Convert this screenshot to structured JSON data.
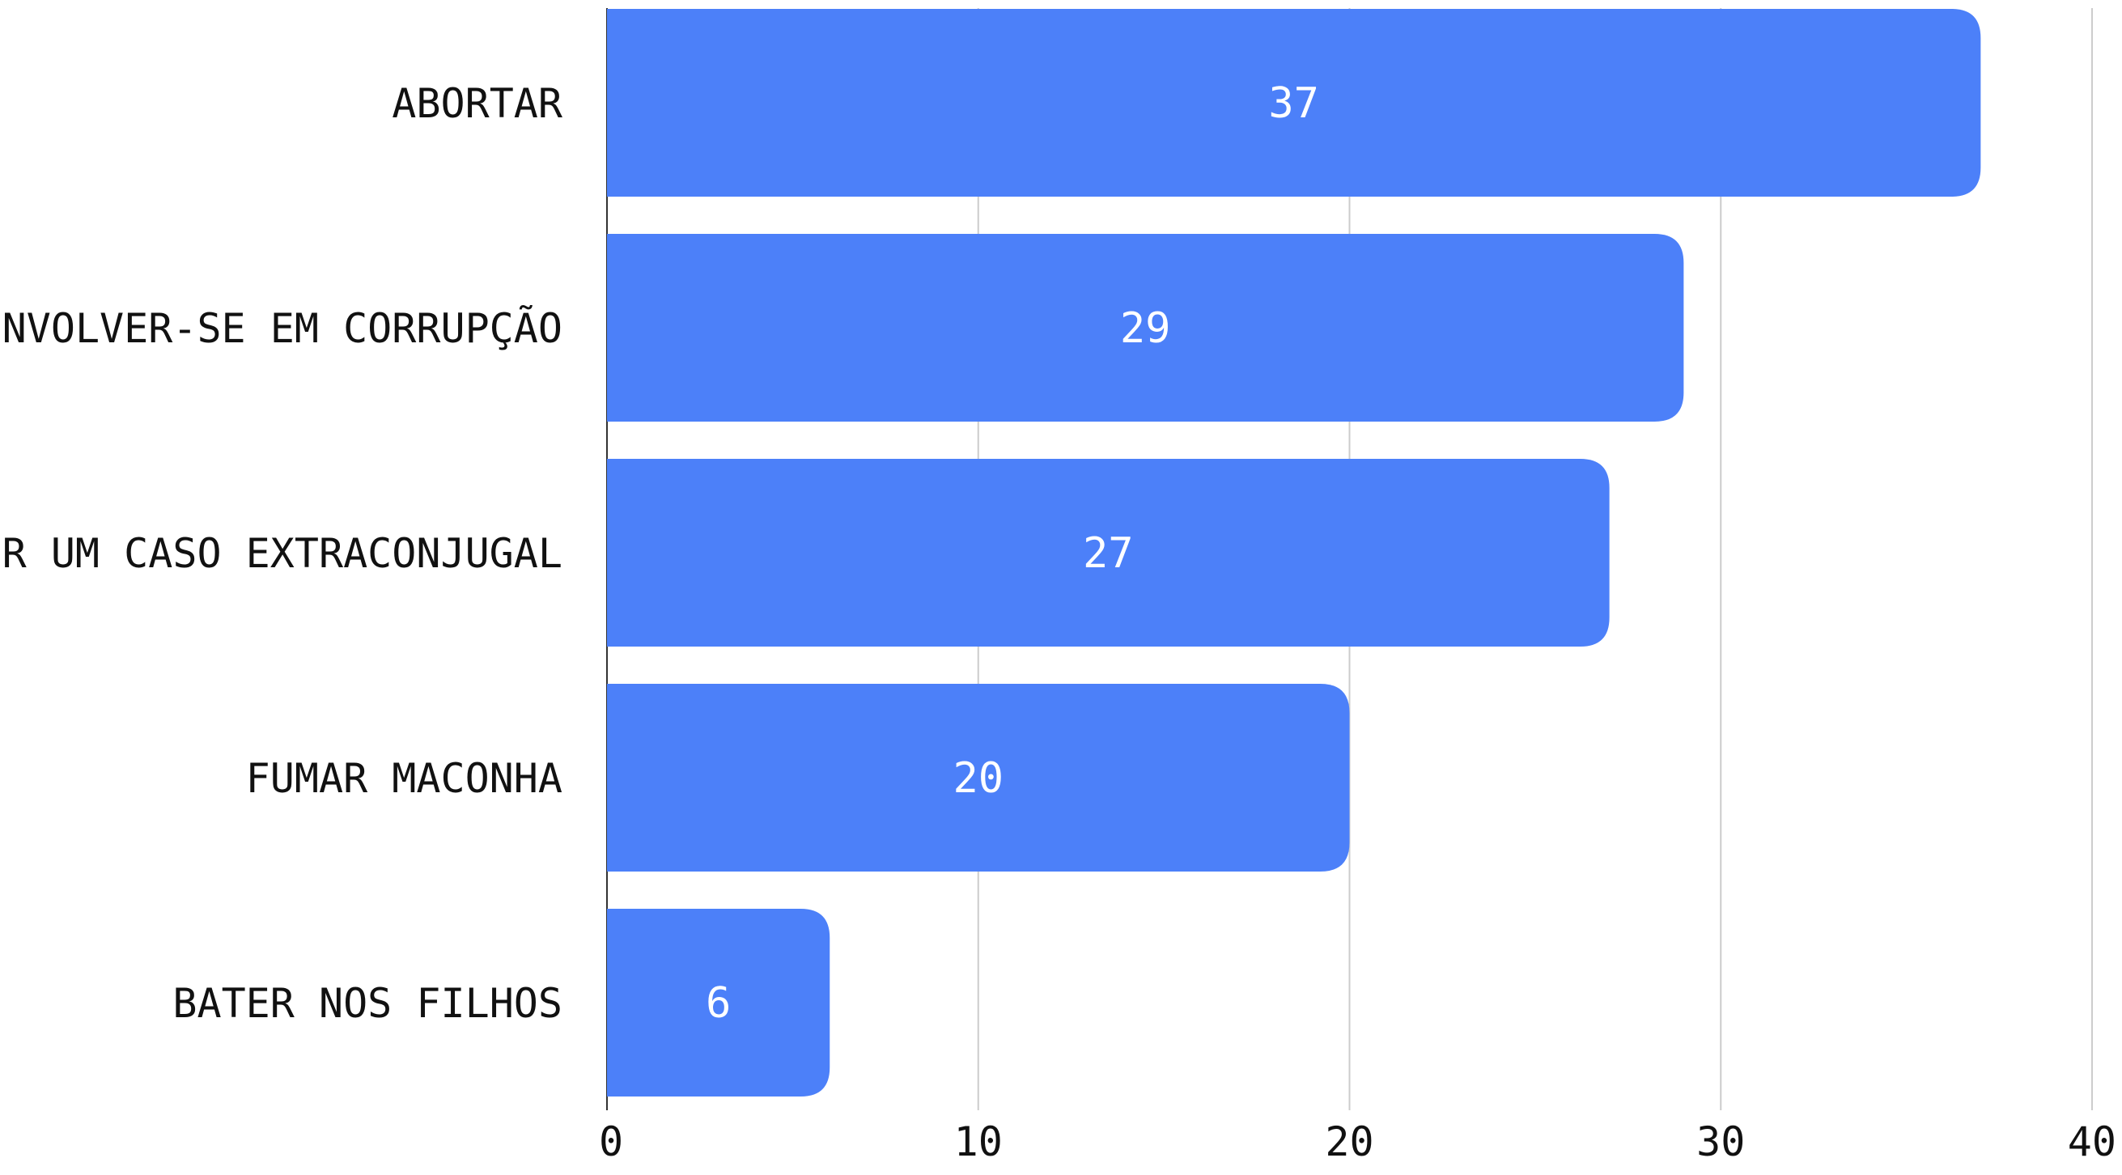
{
  "chart_data": {
    "type": "bar",
    "orientation": "horizontal",
    "categories": [
      "ABORTAR",
      "ENVOLVER-SE EM CORRUPÇÃO",
      "TER UM CASO EXTRACONJUGAL",
      "FUMAR MACONHA",
      "BATER NOS FILHOS"
    ],
    "values": [
      37,
      29,
      27,
      20,
      6
    ],
    "data_labels": [
      "37",
      "29",
      "27",
      "20",
      "6"
    ],
    "xlim": [
      0,
      40
    ],
    "x_ticks": [
      0,
      10,
      20,
      30,
      40
    ],
    "x_tick_labels": [
      "0",
      "10",
      "20",
      "30",
      "40"
    ],
    "grid": true,
    "legend": "none",
    "bar_color": "#4c80f9",
    "title": "",
    "xlabel": "",
    "ylabel": ""
  }
}
